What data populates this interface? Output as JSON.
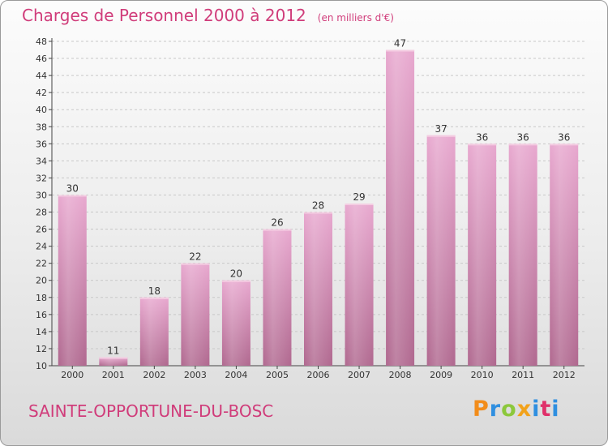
{
  "header": {
    "title": "Charges de Personnel 2000 à 2012",
    "subtitle": "(en milliers d'€)"
  },
  "footer": {
    "city": "SAINTE-OPPORTUNE-DU-BOSC",
    "logo": "Proxiti"
  },
  "colors": {
    "accent": "#d03c7a",
    "bar_light": "#e8a8cf",
    "bar_dark": "#b0688f"
  },
  "chart_data": {
    "type": "bar",
    "title": "Charges de Personnel 2000 à 2012",
    "subtitle": "(en milliers d'€)",
    "categories": [
      "2000",
      "2001",
      "2002",
      "2003",
      "2004",
      "2005",
      "2006",
      "2007",
      "2008",
      "2009",
      "2010",
      "2011",
      "2012"
    ],
    "values": [
      30,
      11,
      18,
      22,
      20,
      26,
      28,
      29,
      47,
      37,
      36,
      36,
      36
    ],
    "ylim": [
      10,
      48
    ],
    "yticks": [
      10,
      12,
      14,
      16,
      18,
      20,
      22,
      24,
      26,
      28,
      30,
      32,
      34,
      36,
      38,
      40,
      42,
      44,
      46,
      48
    ],
    "grid": true,
    "xlabel": "",
    "ylabel": ""
  }
}
